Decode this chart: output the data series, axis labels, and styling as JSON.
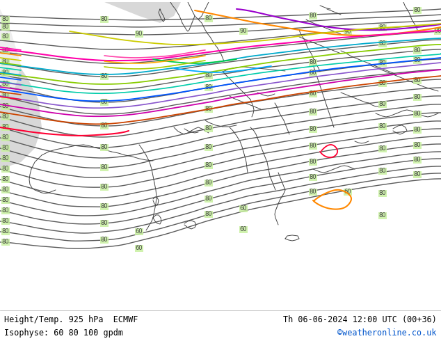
{
  "title_left_line1": "Height/Temp. 925 hPa  ECMWF",
  "title_left_line2": "Isophyse: 60 80 100 gpdm",
  "title_right_line1": "Th 06-06-2024 12:00 UTC (00+36)",
  "title_right_line2": "©weatheronline.co.uk",
  "title_right_line2_color": "#0055cc",
  "bg_green": "#c8f0a0",
  "bg_gray": "#d8d8d8",
  "bg_white": "#ffffff",
  "contour_color": "#666666",
  "border_color": "#444444",
  "footer_text_color": "#000000",
  "fig_width": 6.34,
  "fig_height": 4.9,
  "dpi": 100
}
